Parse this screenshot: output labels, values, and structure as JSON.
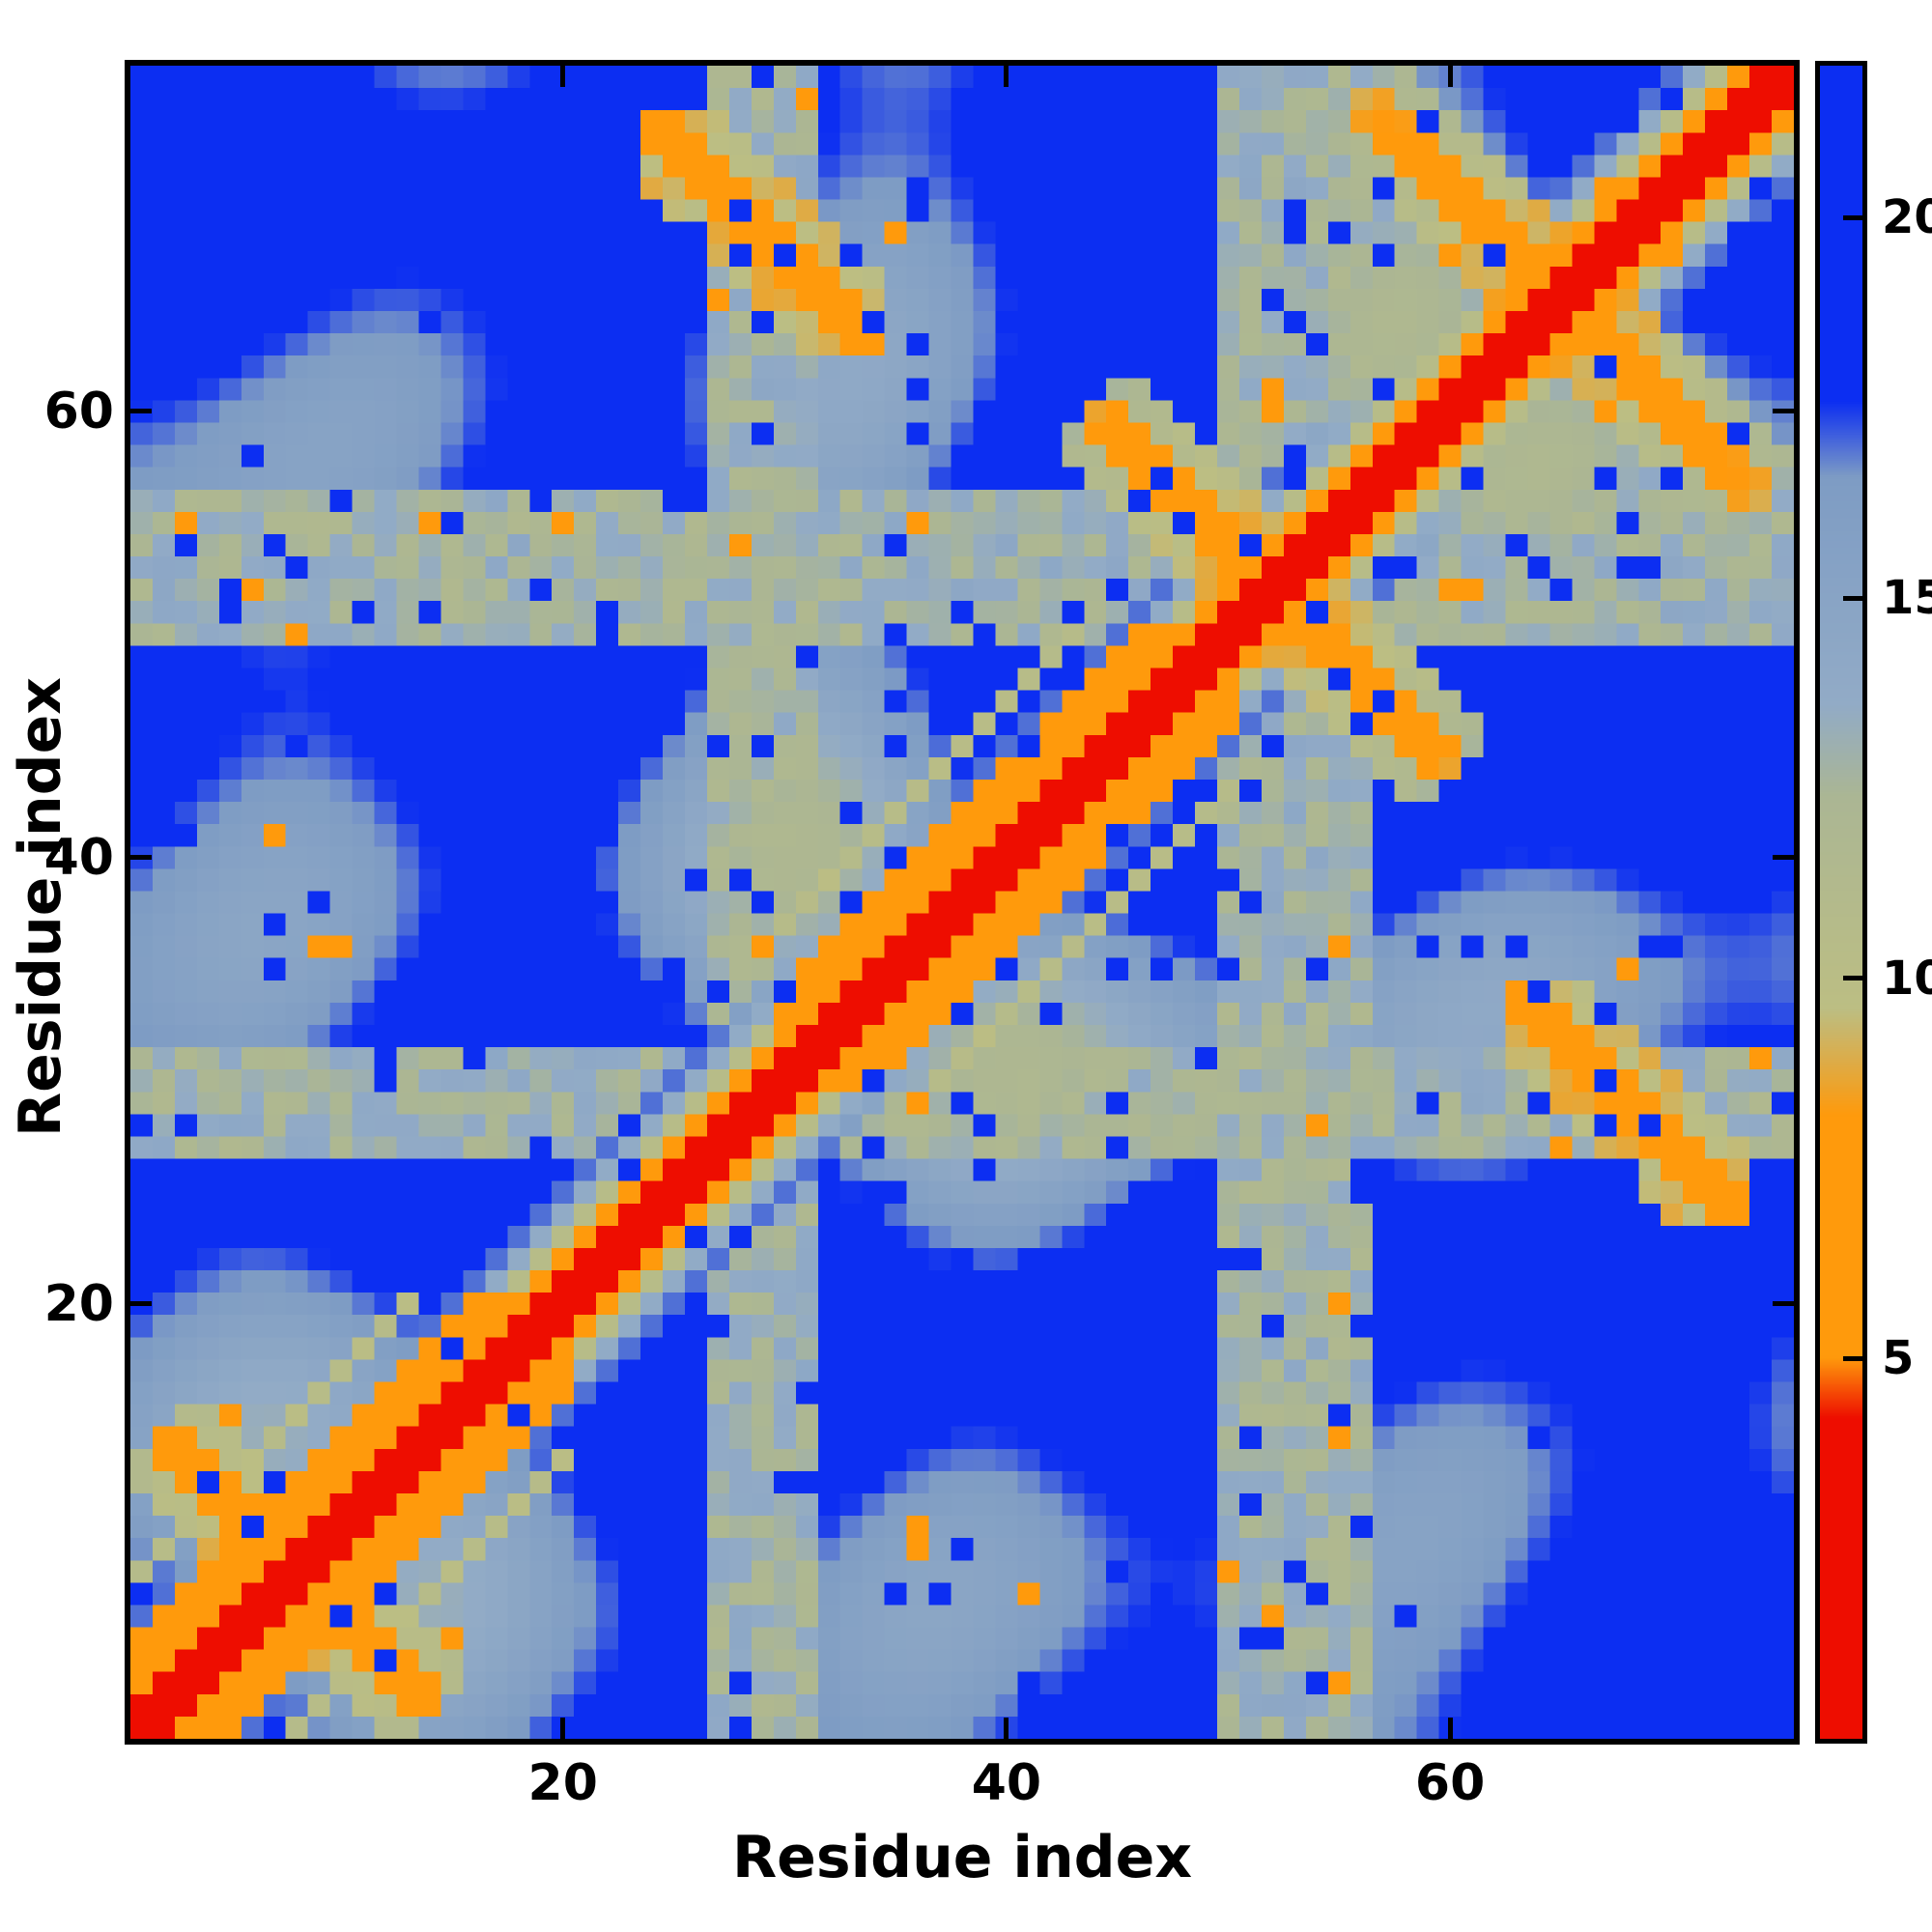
{
  "figure": {
    "background_color": "#ffffff",
    "frame_color": "#000000"
  },
  "chart_data": {
    "type": "heatmap",
    "title": "",
    "xlabel": "Residue index",
    "ylabel": "Residue index",
    "x_range": [
      0.5,
      75.5
    ],
    "y_range": [
      0.5,
      75.5
    ],
    "x_ticks": [
      20,
      40,
      60
    ],
    "y_ticks": [
      20,
      40,
      60
    ],
    "grid": false,
    "legend": "none",
    "colorbar": {
      "position": "right",
      "orientation": "vertical",
      "vmin": 0,
      "vmax": 22,
      "ticks": [
        5,
        10,
        15,
        20
      ]
    },
    "colormap_stops": [
      [
        0.0,
        "#ee0d00"
      ],
      [
        4.2,
        "#ee0d00"
      ],
      [
        5.0,
        "#ff9a0c"
      ],
      [
        8.2,
        "#ff9a0c"
      ],
      [
        9.6,
        "#bcbe83"
      ],
      [
        12.4,
        "#abb694"
      ],
      [
        13.6,
        "#92abc6"
      ],
      [
        16.6,
        "#7e9cc4"
      ],
      [
        17.6,
        "#0c2ef2"
      ],
      [
        22.0,
        "#0c2ef2"
      ]
    ],
    "structure_model": {
      "n_residues": 75,
      "max_distance": 22,
      "chain_contact_intercept": 0.5,
      "chain_contact_slope": 3.3,
      "field_terms": 5,
      "far_mean": 17.8,
      "far_amplitude": 9.5,
      "far_floor": 9.2,
      "helices": [
        [
          1,
          20
        ],
        [
          30,
          50
        ]
      ],
      "hairpins": [
        [
          8,
          6
        ],
        [
          52,
          8
        ],
        [
          65,
          9
        ]
      ],
      "antiparallel_pairs": [
        {
          "range_a": [
            24,
            34
          ],
          "range_b": [
            63,
            73
          ],
          "index_sum": 97
        }
      ],
      "loop_bands": [
        [
          27,
          31
        ],
        [
          50,
          56
        ]
      ],
      "noise_seed": 20240917,
      "blue_speckle_rate": 0.05,
      "orange_speckle_rate": 0.015
    }
  }
}
